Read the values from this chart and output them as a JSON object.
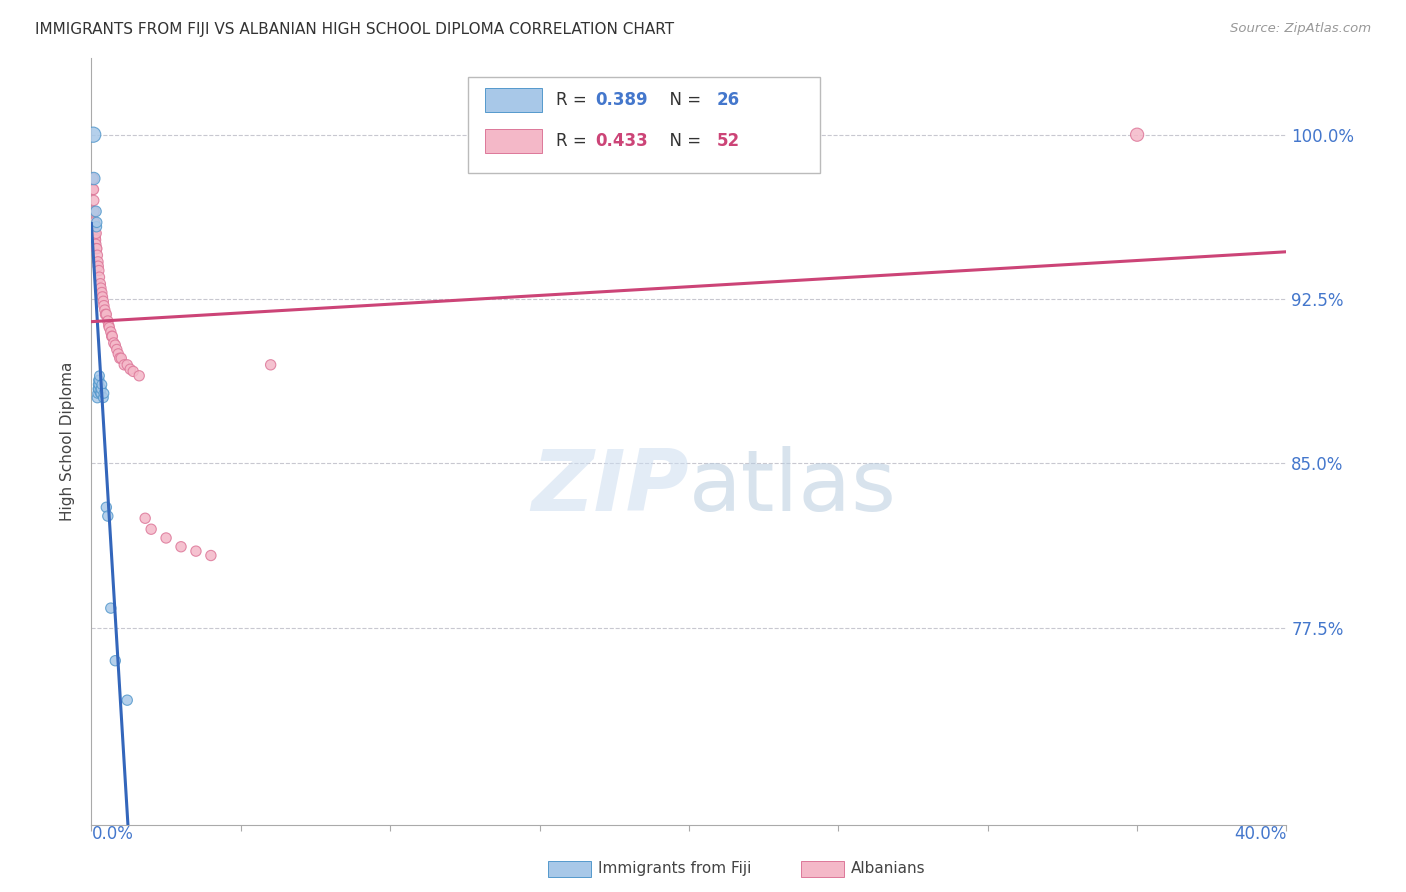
{
  "title": "IMMIGRANTS FROM FIJI VS ALBANIAN HIGH SCHOOL DIPLOMA CORRELATION CHART",
  "source": "Source: ZipAtlas.com",
  "ylabel": "High School Diploma",
  "ylabel_ticks": [
    "77.5%",
    "85.0%",
    "92.5%",
    "100.0%"
  ],
  "ylabel_vals": [
    0.775,
    0.85,
    0.925,
    1.0
  ],
  "xmin": 0.0,
  "xmax": 0.4,
  "ymin": 0.685,
  "ymax": 1.035,
  "legend_label1": "Immigrants from Fiji",
  "legend_label2": "Albanians",
  "blue_fill": "#a8c8e8",
  "blue_edge": "#5599cc",
  "pink_fill": "#f4b8c8",
  "pink_edge": "#dd7799",
  "blue_line": "#3366bb",
  "pink_line": "#cc4477",
  "watermark_zip_color": "#c8ddf0",
  "watermark_atlas_color": "#b8cce0",
  "legend_r1_color": "#4477cc",
  "legend_r2_color": "#cc4477",
  "fiji_x": [
    0.0006,
    0.0008,
    0.0015,
    0.0017,
    0.0018,
    0.002,
    0.0021,
    0.0022,
    0.0023,
    0.0024,
    0.0024,
    0.0025,
    0.0026,
    0.0027,
    0.003,
    0.0031,
    0.0032,
    0.0033,
    0.0035,
    0.004,
    0.0042,
    0.005,
    0.0055,
    0.0065,
    0.008,
    0.012
  ],
  "fiji_y": [
    1.0,
    0.98,
    0.965,
    0.958,
    0.96,
    0.88,
    0.882,
    0.884,
    0.886,
    0.884,
    0.888,
    0.886,
    0.888,
    0.89,
    0.882,
    0.884,
    0.882,
    0.884,
    0.886,
    0.88,
    0.882,
    0.83,
    0.826,
    0.784,
    0.76,
    0.742
  ],
  "fiji_sizes": [
    120,
    80,
    60,
    55,
    55,
    55,
    50,
    50,
    50,
    50,
    50,
    50,
    50,
    50,
    50,
    50,
    50,
    50,
    50,
    50,
    50,
    55,
    55,
    55,
    55,
    55
  ],
  "albanian_x": [
    0.0005,
    0.0006,
    0.0007,
    0.0008,
    0.0009,
    0.001,
    0.0012,
    0.0013,
    0.0014,
    0.0015,
    0.0016,
    0.0017,
    0.0018,
    0.002,
    0.0022,
    0.0023,
    0.0025,
    0.0027,
    0.003,
    0.0032,
    0.0035,
    0.0037,
    0.004,
    0.0042,
    0.0045,
    0.0047,
    0.005,
    0.0055,
    0.0058,
    0.006,
    0.0065,
    0.0068,
    0.007,
    0.0075,
    0.008,
    0.0085,
    0.009,
    0.0095,
    0.01,
    0.011,
    0.012,
    0.013,
    0.014,
    0.016,
    0.018,
    0.02,
    0.025,
    0.03,
    0.035,
    0.04,
    0.06,
    0.35
  ],
  "albanian_y": [
    0.975,
    0.98,
    0.975,
    0.97,
    0.965,
    0.96,
    0.955,
    0.953,
    0.952,
    0.95,
    0.955,
    0.948,
    0.948,
    0.945,
    0.942,
    0.94,
    0.938,
    0.935,
    0.932,
    0.93,
    0.928,
    0.926,
    0.924,
    0.922,
    0.92,
    0.918,
    0.918,
    0.915,
    0.913,
    0.912,
    0.91,
    0.908,
    0.908,
    0.905,
    0.904,
    0.902,
    0.9,
    0.898,
    0.898,
    0.895,
    0.895,
    0.893,
    0.892,
    0.89,
    0.825,
    0.82,
    0.816,
    0.812,
    0.81,
    0.808,
    0.895,
    1.0
  ],
  "albanian_sizes": [
    55,
    55,
    55,
    55,
    55,
    55,
    55,
    55,
    55,
    55,
    55,
    55,
    55,
    55,
    55,
    55,
    55,
    55,
    55,
    55,
    55,
    55,
    55,
    55,
    55,
    55,
    55,
    55,
    55,
    55,
    55,
    55,
    55,
    55,
    55,
    55,
    55,
    55,
    55,
    55,
    55,
    55,
    55,
    55,
    55,
    55,
    55,
    55,
    55,
    55,
    55,
    90
  ]
}
